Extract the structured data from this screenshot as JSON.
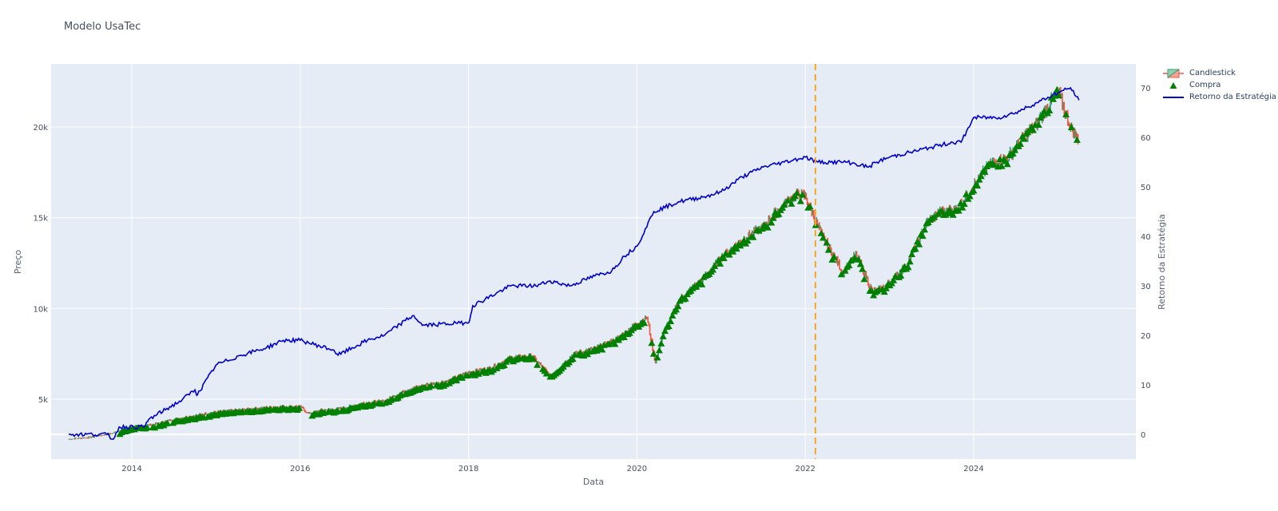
{
  "title": "Modelo UsaTec",
  "legend": {
    "items": [
      {
        "label": "Candlestick",
        "symbol": "candle"
      },
      {
        "label": "Compra",
        "symbol": "triangle-up",
        "color": "#008000"
      },
      {
        "label": "Retorno da Estratégia",
        "symbol": "line",
        "color": "#0000cc"
      }
    ]
  },
  "axes": {
    "x_title": "Data",
    "y_left_title": "Preço",
    "y_right_title": "Retorno da Estratégia",
    "x_ticks": [
      "2014",
      "2016",
      "2018",
      "2020",
      "2022",
      "2024"
    ],
    "y_left_ticks": [
      "5k",
      "10k",
      "15k",
      "20k"
    ],
    "y_right_ticks": [
      "0",
      "10",
      "20",
      "30",
      "40",
      "50",
      "60",
      "70"
    ]
  },
  "colors": {
    "plot_bg": "#e5ecf6",
    "grid": "#ffffff",
    "increasing": "#3d9970",
    "decreasing": "#ef553b",
    "buy_marker": "#008000",
    "strategy_line": "#0000cc",
    "vline": "#f5a623"
  },
  "chart_data": {
    "type": "candlestick+scatter+line",
    "title": "Modelo UsaTec",
    "xlabel": "Data",
    "ylabel": "Preço",
    "y2label": "Retorno da Estratégia",
    "xlim": [
      "2013-01",
      "2025-08"
    ],
    "ylim": [
      1800,
      23800
    ],
    "y2lim": [
      -5,
      75
    ],
    "vertical_line": {
      "x": "2022-02",
      "style": "dash",
      "color": "#f5a623"
    },
    "series": [
      {
        "name": "Candlestick (close approx.)",
        "type": "candlestick",
        "x": [
          2013.25,
          2013.5,
          2013.75,
          2014.0,
          2014.25,
          2014.5,
          2014.75,
          2015.0,
          2015.25,
          2015.5,
          2015.75,
          2016.0,
          2016.1,
          2016.25,
          2016.5,
          2016.75,
          2017.0,
          2017.25,
          2017.5,
          2017.75,
          2018.0,
          2018.25,
          2018.5,
          2018.75,
          2018.97,
          2019.25,
          2019.5,
          2019.75,
          2020.0,
          2020.12,
          2020.22,
          2020.3,
          2020.5,
          2020.75,
          2021.0,
          2021.25,
          2021.5,
          2021.75,
          2021.9,
          2022.0,
          2022.2,
          2022.45,
          2022.6,
          2022.8,
          2022.95,
          2023.2,
          2023.45,
          2023.6,
          2023.8,
          2024.0,
          2024.2,
          2024.4,
          2024.6,
          2024.75,
          2024.9,
          2025.0,
          2025.15,
          2025.25
        ],
        "values": [
          2800,
          2900,
          3100,
          3500,
          3600,
          3900,
          4100,
          4300,
          4400,
          4500,
          4600,
          4600,
          4200,
          4400,
          4500,
          4800,
          4900,
          5500,
          5800,
          6000,
          6500,
          6700,
          7300,
          7400,
          6300,
          7500,
          7800,
          8300,
          9200,
          9500,
          7000,
          8500,
          10500,
          11500,
          12800,
          13800,
          14500,
          15800,
          16300,
          16200,
          14000,
          12000,
          13000,
          10900,
          11200,
          12400,
          14800,
          15300,
          15500,
          16800,
          18000,
          18300,
          19500,
          20200,
          21300,
          22000,
          20000,
          19200
        ]
      },
      {
        "name": "Compra",
        "type": "scatter",
        "marker": "triangle-up",
        "note": "buy signals densely placed along the price series, absent in some drawdowns"
      },
      {
        "name": "Retorno da Estratégia",
        "type": "line",
        "axis": "y2",
        "x": [
          2013.25,
          2013.7,
          2013.78,
          2013.85,
          2014.15,
          2014.2,
          2014.3,
          2014.6,
          2014.75,
          2014.78,
          2015.0,
          2015.3,
          2015.6,
          2015.8,
          2016.0,
          2016.4,
          2016.45,
          2016.8,
          2017.0,
          2017.25,
          2017.35,
          2017.45,
          2017.9,
          2018.0,
          2018.05,
          2018.5,
          2018.8,
          2018.97,
          2019.2,
          2019.5,
          2019.7,
          2019.85,
          2020.0,
          2020.2,
          2020.5,
          2020.8,
          2021.0,
          2021.25,
          2021.5,
          2021.75,
          2022.0,
          2022.15,
          2022.3,
          2022.5,
          2022.75,
          2022.85,
          2023.0,
          2023.25,
          2023.5,
          2023.75,
          2023.85,
          2024.0,
          2024.3,
          2024.5,
          2024.75,
          2025.0,
          2025.15,
          2025.25
        ],
        "values": [
          0,
          0,
          -1,
          1.5,
          1.5,
          3,
          4,
          7,
          9,
          8,
          14,
          16,
          17.5,
          19,
          19,
          17,
          16,
          19,
          20,
          23,
          24,
          22,
          22.5,
          22.5,
          26,
          30,
          30,
          31,
          30,
          32,
          33,
          36,
          38,
          45,
          47,
          48,
          49,
          52,
          54,
          55,
          56,
          55,
          55,
          55,
          54,
          55,
          56,
          57,
          58,
          59,
          59,
          64,
          64,
          65,
          67,
          69,
          70,
          67.5
        ]
      }
    ]
  }
}
